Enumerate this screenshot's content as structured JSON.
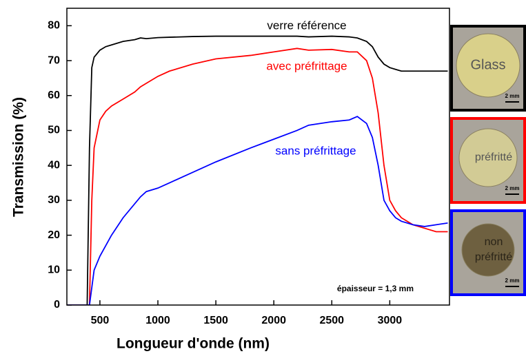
{
  "chart_data": {
    "type": "line",
    "xlabel": "Longueur d'onde (nm)",
    "ylabel": "Transmission (%)",
    "annotation": "épaisseur = 1,3 mm",
    "x": [
      220,
      390,
      410,
      430,
      450,
      500,
      550,
      600,
      700,
      800,
      850,
      900,
      1000,
      1100,
      1300,
      1500,
      1800,
      2000,
      2200,
      2300,
      2500,
      2650,
      2720,
      2800,
      2850,
      2900,
      2950,
      3000,
      3050,
      3100,
      3200,
      3300,
      3400,
      3500
    ],
    "series": [
      {
        "name": "verre référence",
        "color": "#000000",
        "values": [
          0,
          0,
          45,
          68,
          71,
          73,
          74,
          74.5,
          75.5,
          76,
          76.5,
          76.3,
          76.6,
          76.7,
          76.9,
          77,
          77,
          77,
          77,
          76.8,
          77,
          76.8,
          76.5,
          75.5,
          74,
          71,
          69,
          68,
          67.5,
          67,
          67,
          67,
          67,
          67
        ]
      },
      {
        "name": "avec préfrittage",
        "color": "#ff0000",
        "values": [
          0,
          0,
          0,
          30,
          45,
          53,
          55.5,
          57,
          59,
          61,
          62.5,
          63.5,
          65.5,
          67,
          69,
          70.5,
          71.5,
          72.5,
          73.5,
          73,
          73.2,
          72.5,
          72.5,
          70,
          65,
          55,
          40,
          30,
          27,
          25,
          23,
          22,
          21,
          21
        ]
      },
      {
        "name": "sans préfrittage",
        "color": "#0000ff",
        "values": [
          0,
          0,
          0,
          5,
          10,
          14,
          17,
          20,
          25,
          29,
          31,
          32.5,
          33.5,
          35,
          38,
          41,
          45,
          47.5,
          50,
          51.5,
          52.5,
          53,
          54,
          52,
          48,
          40,
          30,
          27,
          25,
          24,
          23,
          22.5,
          23,
          23.5
        ]
      }
    ],
    "xlim": [
      215,
      3515
    ],
    "ylim": [
      0,
      85
    ],
    "xticks": [
      500,
      1000,
      1500,
      2000,
      2500,
      3000
    ],
    "yticks": [
      0,
      10,
      20,
      30,
      40,
      50,
      60,
      70,
      80
    ]
  },
  "photos": [
    {
      "lines": [
        "Glass"
      ],
      "scale": "2 mm",
      "border": "#000000",
      "disc": "#d9d08a"
    },
    {
      "lines": [
        "préfritté"
      ],
      "scale": "2 mm",
      "border": "#ff0000",
      "disc": "#d2cb95"
    },
    {
      "lines": [
        "non",
        "préfritté"
      ],
      "scale": "2 mm",
      "border": "#0000ff",
      "disc": "#6e6040"
    }
  ]
}
